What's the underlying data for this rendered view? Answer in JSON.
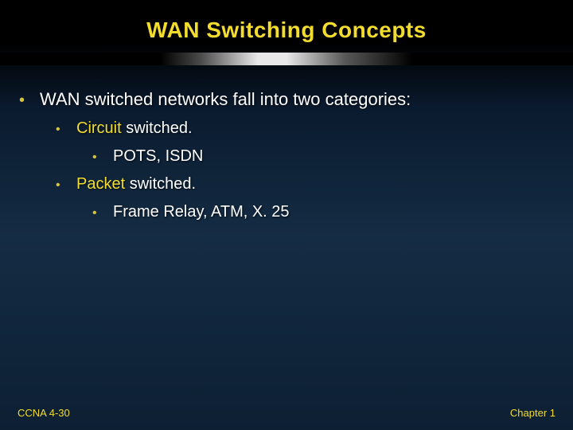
{
  "colors": {
    "title": "#f2dc2e",
    "body": "#ffffff",
    "highlight": "#f2dc2e",
    "bullet": "#d6c536",
    "footer": "#f2dc2e"
  },
  "title": "WAN Switching Concepts",
  "content": {
    "l1": "WAN switched networks fall into two categories:",
    "l2a_hl": "Circuit",
    "l2a_rest": " switched.",
    "l3a": "POTS, ISDN",
    "l2b_hl": "Packet",
    "l2b_rest": " switched.",
    "l3b": "Frame Relay, ATM, X. 25"
  },
  "footer": {
    "left": "CCNA 4-30",
    "right": "Chapter 1"
  }
}
